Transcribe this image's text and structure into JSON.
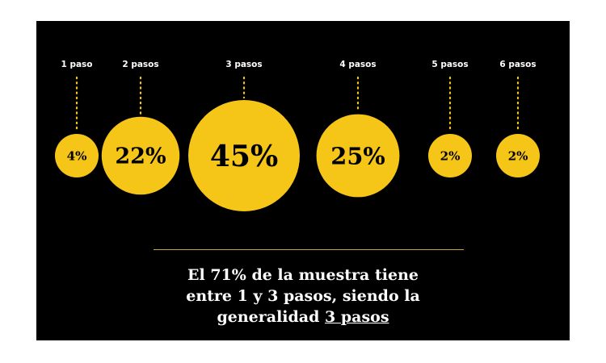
{
  "chart_data": {
    "type": "bubble",
    "categories": [
      "1 paso",
      "2 pasos",
      "3 pasos",
      "4 pasos",
      "5 pasos",
      "6 pasos"
    ],
    "values": [
      4,
      22,
      45,
      25,
      2,
      2
    ],
    "value_labels": [
      "4%",
      "22%",
      "45%",
      "25%",
      "2%",
      "2%"
    ],
    "unit": "%",
    "title": "",
    "xlabel": "",
    "ylabel": "",
    "legend": "none",
    "grid": false
  },
  "caption": {
    "line1": "El 71% de la muestra tiene",
    "line2": "entre 1 y 3 pasos, siendo la",
    "line3_prefix": "generalidad ",
    "line3_highlight": "3 pasos"
  },
  "colors": {
    "background": "#000000",
    "bubble": "#f5c518",
    "text": "#ffffff",
    "divider": "#c9a63d"
  }
}
